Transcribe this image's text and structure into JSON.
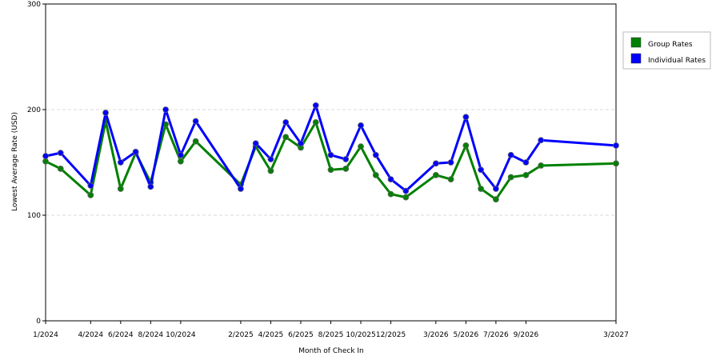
{
  "chart_data": {
    "type": "line",
    "title": "",
    "xlabel": "Month of Check In",
    "ylabel": "Lowest Average Rate (USD)",
    "ylim": [
      0,
      300
    ],
    "yticks": [
      0,
      100,
      200,
      300
    ],
    "xtick_labels": [
      "1/2024",
      "4/2024",
      "6/2024",
      "8/2024",
      "10/2024",
      "2/2025",
      "4/2025",
      "6/2025",
      "8/2025",
      "10/2025",
      "12/2025",
      "3/2026",
      "5/2026",
      "7/2026",
      "9/2026",
      "3/2027"
    ],
    "x": [
      "1/2024",
      "2/2024",
      "4/2024",
      "5/2024",
      "6/2024",
      "7/2024",
      "8/2024",
      "9/2024",
      "10/2024",
      "11/2024",
      "2/2025",
      "3/2025",
      "4/2025",
      "5/2025",
      "6/2025",
      "7/2025",
      "8/2025",
      "9/2025",
      "10/2025",
      "11/2025",
      "12/2025",
      "1/2026",
      "3/2026",
      "4/2026",
      "5/2026",
      "6/2026",
      "7/2026",
      "8/2026",
      "9/2026",
      "10/2026",
      "3/2027"
    ],
    "grid": "horizontal dashed",
    "legend_position": "right",
    "series": [
      {
        "name": "Group Rates",
        "color": "#008000",
        "values": [
          151,
          144,
          119,
          189,
          125,
          159,
          131,
          186,
          151,
          170,
          129,
          165,
          142,
          174,
          164,
          188,
          143,
          144,
          165,
          138,
          120,
          117,
          138,
          134,
          166,
          125,
          115,
          136,
          138,
          147,
          149
        ]
      },
      {
        "name": "Individual Rates",
        "color": "#0000FF",
        "values": [
          156,
          159,
          128,
          197,
          150,
          160,
          127,
          200,
          157,
          189,
          125,
          168,
          153,
          188,
          168,
          204,
          157,
          153,
          185,
          157,
          134,
          123,
          149,
          150,
          193,
          143,
          125,
          157,
          150,
          171,
          166
        ]
      }
    ]
  }
}
